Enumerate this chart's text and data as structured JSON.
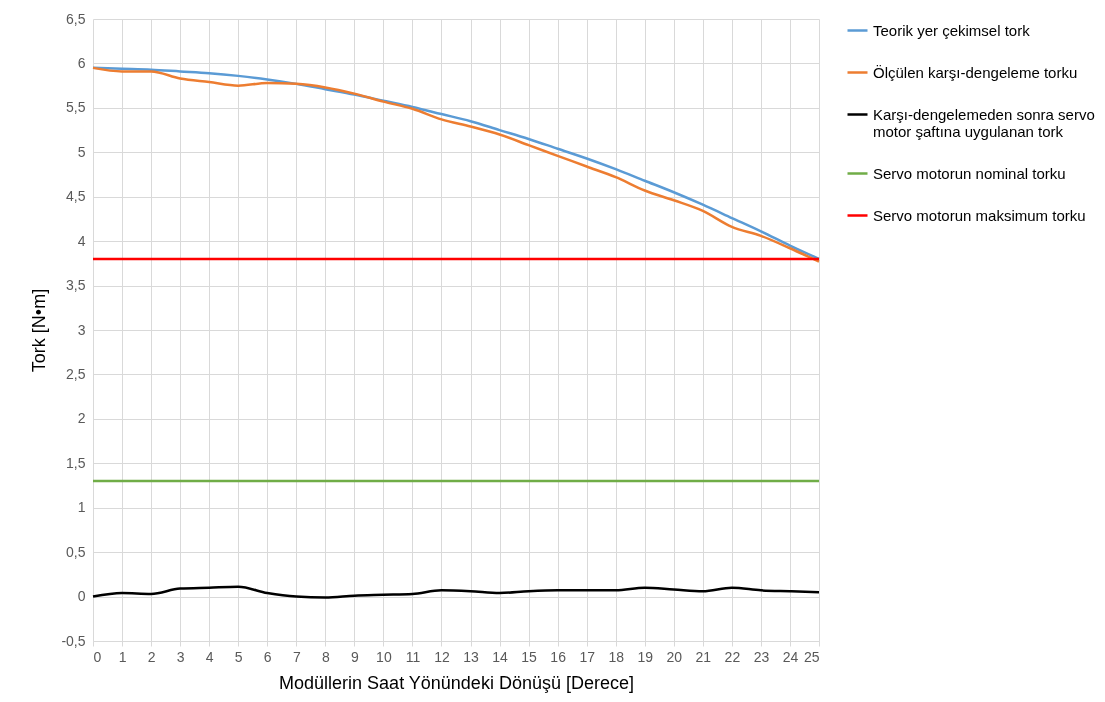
{
  "chart_data": {
    "type": "line",
    "xlabel": "Modüllerin Saat Yönündeki Dönüşü [Derece]",
    "ylabel": "Tork [N•m]",
    "x": [
      0,
      1,
      2,
      3,
      4,
      5,
      6,
      7,
      8,
      9,
      10,
      11,
      12,
      13,
      14,
      15,
      16,
      17,
      18,
      19,
      20,
      21,
      22,
      23,
      24,
      25
    ],
    "series": [
      {
        "name": "Teorik yer çekimsel tork",
        "color": "#5b9bd5",
        "values": [
          5.95,
          5.94,
          5.93,
          5.91,
          5.89,
          5.86,
          5.82,
          5.77,
          5.71,
          5.65,
          5.58,
          5.51,
          5.43,
          5.35,
          5.25,
          5.15,
          5.04,
          4.93,
          4.81,
          4.68,
          4.55,
          4.41,
          4.26,
          4.11,
          3.95,
          3.8
        ]
      },
      {
        "name": "Ölçülen karşı-dengeleme torku",
        "color": "#ed7d31",
        "values": [
          5.95,
          5.91,
          5.91,
          5.83,
          5.79,
          5.75,
          5.78,
          5.77,
          5.73,
          5.66,
          5.57,
          5.49,
          5.37,
          5.29,
          5.2,
          5.08,
          4.96,
          4.84,
          4.72,
          4.57,
          4.46,
          4.34,
          4.16,
          4.06,
          3.92,
          3.77
        ]
      },
      {
        "name": "Karşı-dengelemeden sonra servo motor şaftına uygulanan tork",
        "color": "#000000",
        "values": [
          0,
          0.04,
          0.03,
          0.09,
          0.1,
          0.11,
          0.04,
          0,
          -0.01,
          0.01,
          0.02,
          0.03,
          0.07,
          0.06,
          0.04,
          0.06,
          0.07,
          0.07,
          0.07,
          0.1,
          0.08,
          0.06,
          0.1,
          0.07,
          0.06,
          0.05
        ]
      },
      {
        "name": "Servo motorun nominal torku",
        "color": "#70ad47",
        "values": [
          1.3,
          1.3,
          1.3,
          1.3,
          1.3,
          1.3,
          1.3,
          1.3,
          1.3,
          1.3,
          1.3,
          1.3,
          1.3,
          1.3,
          1.3,
          1.3,
          1.3,
          1.3,
          1.3,
          1.3,
          1.3,
          1.3,
          1.3,
          1.3,
          1.3,
          1.3
        ]
      },
      {
        "name": "Servo motorun maksimum torku",
        "color": "#ff0000",
        "values": [
          3.8,
          3.8,
          3.8,
          3.8,
          3.8,
          3.8,
          3.8,
          3.8,
          3.8,
          3.8,
          3.8,
          3.8,
          3.8,
          3.8,
          3.8,
          3.8,
          3.8,
          3.8,
          3.8,
          3.8,
          3.8,
          3.8,
          3.8,
          3.8,
          3.8,
          3.8
        ]
      }
    ],
    "xlim": [
      0,
      25
    ],
    "xticks": [
      0,
      1,
      2,
      3,
      4,
      5,
      6,
      7,
      8,
      9,
      10,
      11,
      12,
      13,
      14,
      15,
      16,
      17,
      18,
      19,
      20,
      21,
      22,
      23,
      24,
      25
    ],
    "ylim": [
      -0.5,
      6.5
    ],
    "yticks": [
      {
        "value": -0.5,
        "label": "-0,5"
      },
      0,
      {
        "value": 0.5,
        "label": "0,5"
      },
      1,
      {
        "value": 1.5,
        "label": "1,5"
      },
      2,
      {
        "value": 2.5,
        "label": "2,5"
      },
      3,
      {
        "value": 3.5,
        "label": "3,5"
      },
      4,
      {
        "value": 4.5,
        "label": "4,5"
      },
      5,
      {
        "value": 5.5,
        "label": "5,5"
      },
      6,
      {
        "value": 6.5,
        "label": "6,5"
      }
    ],
    "grid": true,
    "legend": "right",
    "marker": "none",
    "line_style": "solid"
  }
}
